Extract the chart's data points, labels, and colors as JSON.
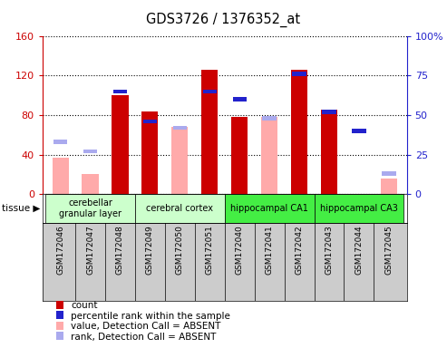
{
  "title": "GDS3726 / 1376352_at",
  "samples": [
    "GSM172046",
    "GSM172047",
    "GSM172048",
    "GSM172049",
    "GSM172050",
    "GSM172051",
    "GSM172040",
    "GSM172041",
    "GSM172042",
    "GSM172043",
    "GSM172044",
    "GSM172045"
  ],
  "tissue_groups": [
    {
      "label": "cerebellar\ngranular layer",
      "start": 0,
      "end": 3,
      "color": "#ccffcc"
    },
    {
      "label": "cerebral cortex",
      "start": 3,
      "end": 6,
      "color": "#ccffcc"
    },
    {
      "label": "hippocampal CA1",
      "start": 6,
      "end": 9,
      "color": "#44ee44"
    },
    {
      "label": "hippocampal CA3",
      "start": 9,
      "end": 12,
      "color": "#44ee44"
    }
  ],
  "count": [
    null,
    null,
    100,
    84,
    null,
    126,
    78,
    null,
    126,
    85,
    null,
    null
  ],
  "percentile_rank": [
    null,
    null,
    65,
    46,
    null,
    65,
    60,
    null,
    76,
    52,
    40,
    null
  ],
  "value_absent": [
    37,
    20,
    null,
    null,
    68,
    null,
    null,
    78,
    null,
    null,
    null,
    16
  ],
  "rank_absent": [
    33,
    27,
    null,
    null,
    42,
    null,
    null,
    48,
    null,
    null,
    null,
    13
  ],
  "count_color": "#cc0000",
  "rank_color": "#2222cc",
  "value_absent_color": "#ffaaaa",
  "rank_absent_color": "#aaaaee",
  "bg_color": "#cccccc"
}
